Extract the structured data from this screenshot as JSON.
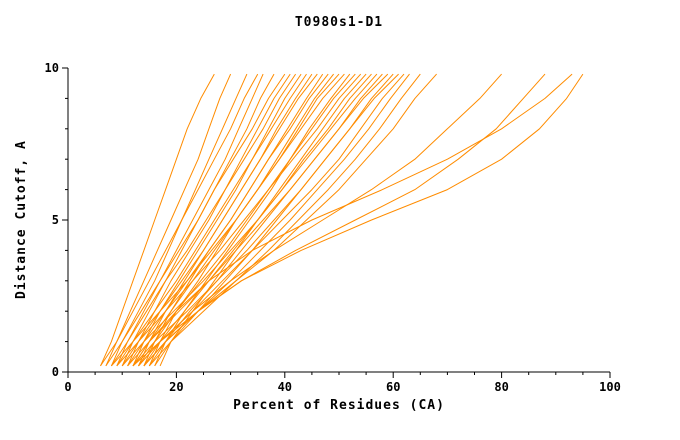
{
  "chart_data": {
    "type": "line",
    "title": "T0980s1-D1",
    "xlabel": "Percent of Residues (CA)",
    "ylabel": "Distance Cutoff, A",
    "xlim": [
      0,
      100
    ],
    "ylim": [
      0,
      10
    ],
    "x_major_ticks": [
      0,
      20,
      40,
      60,
      80,
      100
    ],
    "x_minor_step": 5,
    "y_major_ticks": [
      0,
      5,
      10
    ],
    "y_minor_step": 1,
    "grid": "off",
    "legend": "none",
    "line_color": "#ff8c00",
    "axis_color": "#000000",
    "y_samples": [
      0.2,
      1,
      2,
      3,
      4,
      5,
      6,
      7,
      8,
      9,
      9.8
    ],
    "series": [
      [
        6,
        8,
        10,
        12,
        14,
        16,
        18,
        20,
        22,
        24.5,
        27
      ],
      [
        7,
        9,
        11.5,
        14,
        16.5,
        19,
        21.5,
        24,
        26,
        28,
        30
      ],
      [
        8,
        10,
        13,
        16,
        18.5,
        21,
        23.5,
        26,
        28.5,
        31,
        33
      ],
      [
        6,
        9,
        12,
        15,
        18,
        21,
        24,
        27,
        30,
        32.5,
        35
      ],
      [
        9,
        11,
        14,
        17,
        20,
        23,
        26,
        29,
        31.5,
        34,
        36
      ],
      [
        10,
        12,
        15,
        18,
        21,
        24,
        27,
        30,
        33,
        35.5,
        38
      ],
      [
        7,
        10,
        13.5,
        17,
        20.5,
        24,
        27,
        30.5,
        34,
        37,
        40
      ],
      [
        11,
        13,
        16,
        19,
        22.5,
        26,
        29,
        32,
        35,
        38,
        41
      ],
      [
        8,
        11,
        14.5,
        18,
        22,
        25.5,
        29,
        32.5,
        36,
        39,
        42
      ],
      [
        12,
        14,
        17,
        20.5,
        24,
        27.5,
        31,
        34,
        37,
        40,
        43
      ],
      [
        9,
        12,
        16,
        20,
        23.5,
        27,
        30.5,
        34,
        37.5,
        41,
        44
      ],
      [
        13,
        15,
        18,
        21.5,
        25,
        28.5,
        32,
        35.5,
        38.5,
        42,
        45
      ],
      [
        10,
        13,
        17,
        21,
        25,
        28.5,
        32,
        35.5,
        39,
        42.5,
        46
      ],
      [
        14,
        16,
        19,
        22.5,
        26,
        30,
        33.5,
        37,
        40.5,
        44,
        47
      ],
      [
        11,
        14,
        18,
        22,
        26,
        30,
        33.5,
        37,
        41,
        44.5,
        48
      ],
      [
        15,
        17,
        20,
        24,
        27.5,
        31,
        35,
        38.5,
        42,
        45.5,
        49
      ],
      [
        12,
        15,
        19,
        23,
        27,
        31,
        35,
        39,
        42.5,
        46,
        50
      ],
      [
        8,
        12,
        17,
        22,
        26.5,
        31,
        35,
        39,
        43,
        47,
        51
      ],
      [
        16,
        18,
        21.5,
        25.5,
        29.5,
        33.5,
        37.5,
        41,
        44.5,
        48.5,
        52
      ],
      [
        13,
        16,
        20,
        24.5,
        29,
        33,
        37,
        41,
        45,
        49,
        53
      ],
      [
        9,
        13,
        18,
        23,
        28,
        32.5,
        37,
        41.5,
        46,
        50,
        54
      ],
      [
        17,
        19,
        23,
        27,
        31,
        35,
        39,
        43,
        47,
        51,
        55
      ],
      [
        14,
        17,
        21.5,
        26,
        30.5,
        35,
        39.5,
        43.5,
        48,
        52,
        56
      ],
      [
        10,
        14,
        19.5,
        25,
        30,
        35,
        39.5,
        44,
        48.5,
        53,
        57
      ],
      [
        15,
        18,
        22.5,
        27.5,
        32,
        36.5,
        41,
        45.5,
        50,
        54,
        58
      ],
      [
        11,
        15,
        20.5,
        26,
        31,
        36,
        41,
        45.5,
        50,
        54.5,
        59
      ],
      [
        16,
        19,
        24,
        29,
        34,
        38.5,
        43,
        47.5,
        52,
        56,
        60
      ],
      [
        12,
        16,
        22,
        27.5,
        33,
        38,
        43,
        47.5,
        52,
        56.5,
        61
      ],
      [
        13,
        17,
        23,
        28.5,
        34,
        39.5,
        45,
        50,
        54,
        58,
        62
      ],
      [
        14,
        18,
        24,
        30,
        35.5,
        41,
        46,
        51,
        55.5,
        59.5,
        63
      ],
      [
        15,
        19,
        25,
        31,
        37,
        42.5,
        48,
        53,
        57.5,
        61.5,
        65
      ],
      [
        12,
        17,
        24,
        31,
        38,
        44,
        50,
        55,
        60,
        64,
        68
      ],
      [
        13,
        17,
        23,
        30,
        38,
        47,
        56,
        64,
        70,
        76,
        80
      ],
      [
        14,
        18,
        24,
        32,
        42,
        53,
        64,
        72,
        79,
        84,
        88
      ],
      [
        12,
        15,
        20,
        26,
        34,
        45,
        58,
        70,
        80,
        88,
        93
      ],
      [
        14,
        18,
        24,
        32,
        43,
        56,
        70,
        80,
        87,
        92,
        95
      ]
    ]
  }
}
